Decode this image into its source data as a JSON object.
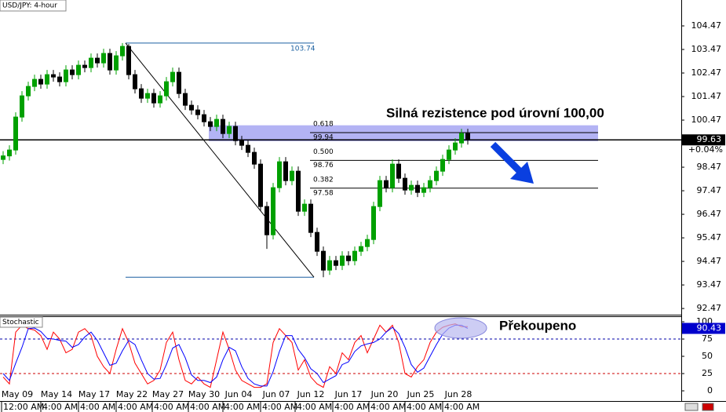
{
  "chart_data": {
    "type": "candlestick",
    "title": "USD/JPY: 4-hour",
    "xlim": [
      -0.5,
      108
    ],
    "ylim": [
      92.24,
      105.57
    ],
    "yticks": [
      104.47,
      103.47,
      102.47,
      101.47,
      100.47,
      98.47,
      97.47,
      96.47,
      95.47,
      94.47,
      93.47,
      92.47
    ],
    "xticks": [
      {
        "value": 2.25,
        "label": "May 09"
      },
      {
        "value": 8.5,
        "label": "May 14"
      },
      {
        "value": 14.5,
        "label": "May 17"
      },
      {
        "value": 20.5,
        "label": "May 22"
      },
      {
        "value": 26.25,
        "label": "May 27"
      },
      {
        "value": 32,
        "label": "May 30"
      },
      {
        "value": 37.5,
        "label": "Jun 04"
      },
      {
        "value": 43.5,
        "label": "Jun 07"
      },
      {
        "value": 49,
        "label": "Jun 12"
      },
      {
        "value": 55,
        "label": "Jun 17"
      },
      {
        "value": 60.75,
        "label": "Jun 20"
      },
      {
        "value": 66.5,
        "label": "Jun 25"
      },
      {
        "value": 72.5,
        "label": "Jun 28"
      }
    ],
    "xtick_times": [
      "12:00 AM",
      "4:00 AM",
      "4:00 AM",
      "4:00 AM",
      "4:00 AM",
      "4:00 AM",
      "4:00 AM",
      "4:00 AM",
      "4:00 AM",
      "4:00 AM",
      "4:00 AM",
      "4:00 AM",
      "4:00 AM"
    ],
    "up_color": "#00a000",
    "down_color": "#000000",
    "open": [
      98.8,
      98.95,
      99.2,
      100.6,
      101.5,
      101.9,
      102.2,
      102.0,
      102.4,
      102.3,
      102.1,
      102.6,
      102.4,
      102.8,
      102.7,
      103.1,
      102.9,
      103.3,
      102.6,
      103.2,
      103.6,
      102.4,
      101.8,
      101.4,
      101.6,
      101.2,
      101.5,
      102.1,
      102.5,
      101.6,
      101.1,
      100.9,
      100.7,
      100.4,
      100.2,
      100.5,
      99.9,
      100.2,
      99.6,
      99.4,
      99.1,
      98.6,
      96.8,
      95.6,
      97.6,
      98.7,
      97.9,
      98.3,
      96.6,
      96.9,
      95.7,
      94.9,
      94.1,
      94.5,
      94.3,
      94.7,
      94.5,
      94.9,
      95.1,
      95.4,
      96.8,
      97.9,
      97.6,
      98.6,
      98.0,
      97.5,
      97.7,
      97.4,
      97.6,
      97.9,
      98.3,
      98.8,
      99.2,
      99.5,
      99.9
    ],
    "high": [
      99.15,
      99.4,
      100.8,
      101.7,
      102.1,
      102.4,
      102.4,
      102.6,
      102.6,
      102.5,
      102.8,
      102.8,
      103.0,
      103.0,
      103.3,
      103.3,
      103.5,
      103.5,
      103.4,
      103.74,
      103.7,
      102.6,
      102.0,
      101.8,
      101.8,
      101.7,
      102.3,
      102.7,
      102.7,
      101.8,
      101.3,
      101.1,
      100.9,
      100.6,
      100.7,
      100.7,
      100.4,
      100.4,
      99.8,
      99.6,
      99.3,
      98.8,
      97.0,
      97.8,
      98.9,
      98.9,
      98.5,
      98.5,
      97.1,
      97.1,
      95.9,
      95.1,
      94.7,
      94.7,
      94.9,
      94.9,
      95.1,
      95.3,
      95.6,
      97.0,
      98.1,
      98.1,
      98.8,
      98.8,
      98.2,
      97.9,
      97.9,
      97.8,
      98.1,
      98.5,
      99.0,
      99.4,
      99.7,
      100.1,
      100.1
    ],
    "low": [
      98.6,
      98.75,
      99.0,
      100.4,
      101.3,
      101.7,
      101.8,
      101.8,
      102.1,
      101.9,
      101.9,
      102.2,
      102.2,
      102.5,
      102.5,
      102.7,
      102.7,
      102.4,
      102.4,
      103.0,
      102.2,
      101.6,
      101.2,
      101.2,
      101.0,
      101.0,
      101.3,
      101.9,
      101.4,
      100.9,
      100.7,
      100.5,
      100.2,
      100.0,
      100.0,
      99.7,
      99.7,
      99.4,
      99.2,
      98.9,
      98.4,
      96.6,
      95.0,
      95.4,
      97.4,
      97.7,
      97.7,
      96.4,
      96.4,
      95.5,
      94.7,
      93.8,
      93.9,
      94.1,
      94.1,
      94.3,
      94.3,
      94.7,
      94.9,
      95.2,
      96.6,
      97.4,
      97.4,
      97.8,
      97.3,
      97.3,
      97.2,
      97.2,
      97.4,
      97.7,
      98.1,
      98.6,
      99.0,
      99.3,
      99.43
    ],
    "close": [
      98.95,
      99.2,
      100.6,
      101.5,
      101.9,
      102.2,
      102.0,
      102.4,
      102.3,
      102.1,
      102.6,
      102.4,
      102.8,
      102.7,
      103.1,
      102.9,
      103.3,
      102.6,
      103.2,
      103.6,
      102.4,
      101.8,
      101.4,
      101.6,
      101.2,
      101.5,
      102.1,
      102.5,
      101.6,
      101.1,
      100.9,
      100.7,
      100.4,
      100.2,
      100.5,
      99.9,
      100.2,
      99.6,
      99.4,
      99.1,
      98.6,
      96.8,
      95.6,
      97.6,
      98.7,
      97.9,
      98.3,
      96.6,
      96.9,
      95.7,
      94.9,
      94.1,
      94.5,
      94.3,
      94.7,
      94.5,
      94.9,
      95.1,
      95.4,
      96.8,
      97.9,
      97.6,
      98.6,
      98.0,
      97.5,
      97.7,
      97.4,
      97.6,
      97.9,
      98.3,
      98.8,
      99.2,
      99.5,
      99.9,
      99.63
    ],
    "last_price": 99.63,
    "change": "+0.04%",
    "resistance_zone": [
      99.57,
      100.25
    ],
    "resistance_note": "Silná rezistence pod úrovní 100,00",
    "fibonacci": [
      {
        "ratio": 0.618,
        "value": 99.94
      },
      {
        "ratio": {
          "value": 0.5,
          "label": "0.500"
        },
        "value": 98.76
      },
      {
        "ratio": 0.382,
        "value": 97.58
      }
    ],
    "swing_low": 93.8,
    "stochastic": {
      "title": "Stochastic",
      "ylim": [
        -13.6,
        108
      ],
      "yticks": [
        100,
        75,
        50,
        25,
        0
      ],
      "levels": [
        {
          "value": 75,
          "color": "#0000aa"
        },
        {
          "value": 25,
          "color": "#cc0000"
        }
      ],
      "series": [
        {
          "color": "#ff0000",
          "values": [
            20,
            10,
            85,
            95,
            90,
            88,
            80,
            60,
            85,
            75,
            55,
            60,
            85,
            90,
            80,
            50,
            35,
            25,
            60,
            90,
            70,
            40,
            25,
            10,
            15,
            30,
            70,
            85,
            45,
            15,
            10,
            20,
            10,
            5,
            45,
            85,
            60,
            30,
            15,
            10,
            5,
            5,
            10,
            70,
            90,
            80,
            70,
            30,
            45,
            20,
            10,
            5,
            35,
            25,
            55,
            45,
            70,
            80,
            55,
            75,
            95,
            85,
            95,
            70,
            25,
            20,
            35,
            45,
            70,
            85,
            92,
            95,
            97,
            93,
            93
          ]
        },
        {
          "color": "#0000ff",
          "values": [
            25,
            15,
            40,
            63,
            90,
            91,
            86,
            76,
            75,
            73,
            72,
            63,
            67,
            78,
            85,
            73,
            55,
            37,
            40,
            58,
            73,
            67,
            45,
            25,
            17,
            18,
            38,
            62,
            67,
            48,
            23,
            15,
            15,
            12,
            20,
            45,
            63,
            58,
            35,
            18,
            10,
            7,
            7,
            28,
            57,
            80,
            80,
            60,
            48,
            32,
            25,
            12,
            17,
            22,
            38,
            42,
            57,
            65,
            68,
            70,
            75,
            85,
            92,
            83,
            63,
            38,
            27,
            33,
            50,
            67,
            82,
            91,
            95,
            95,
            90.43
          ]
        }
      ],
      "note": "Překoupeno"
    }
  }
}
